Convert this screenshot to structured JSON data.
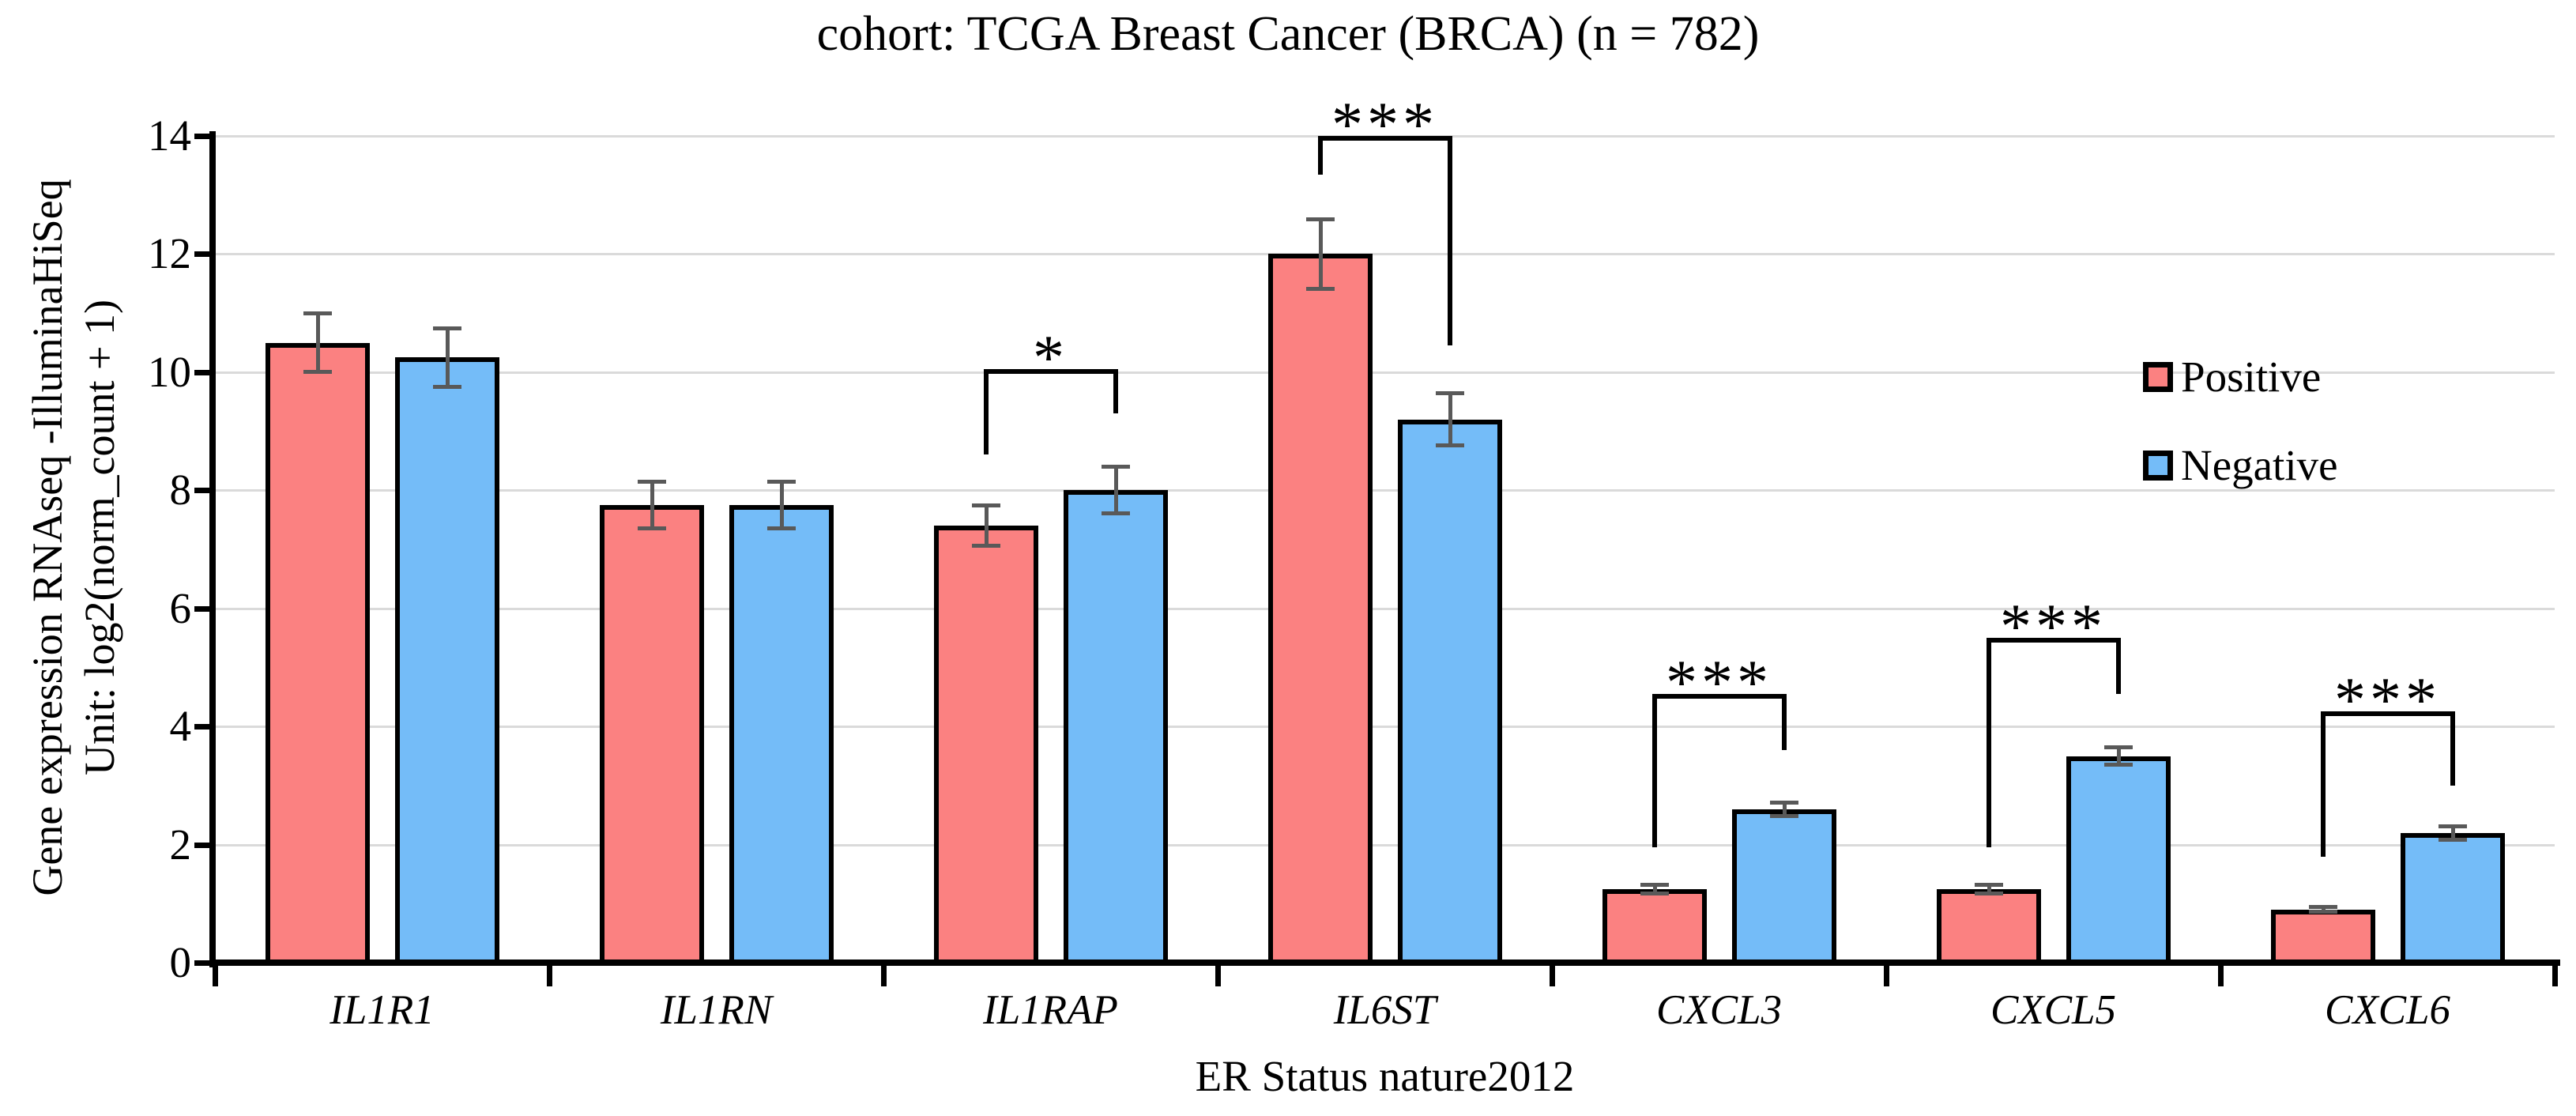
{
  "chart_data": {
    "type": "bar",
    "title": "cohort: TCGA Breast Cancer (BRCA) (n = 782)",
    "xlabel": "ER Status nature2012",
    "ylabel_line1": "Gene expression RNAseq -IlluminaHiSeq",
    "ylabel_line2": "Unit: log2(norm_count + 1)",
    "categories": [
      "IL1R1",
      "IL1RN",
      "IL1RAP",
      "IL6ST",
      "CXCL3",
      "CXCL5",
      "CXCL6"
    ],
    "series": [
      {
        "name": "Positive",
        "color": "#FB8181",
        "values": [
          10.5,
          7.75,
          7.4,
          12.0,
          1.25,
          1.25,
          0.9
        ],
        "errors": [
          0.5,
          0.4,
          0.35,
          0.6,
          0.08,
          0.08,
          0.05
        ]
      },
      {
        "name": "Negative",
        "color": "#74BCF8",
        "values": [
          10.25,
          7.75,
          8.0,
          9.2,
          2.6,
          3.5,
          2.2
        ],
        "errors": [
          0.5,
          0.4,
          0.4,
          0.45,
          0.12,
          0.15,
          0.12
        ]
      }
    ],
    "significance": [
      {
        "category": "IL1RAP",
        "label": "*",
        "bar_y": 10.05,
        "left_drop": 8.6,
        "right_drop": 9.3
      },
      {
        "category": "IL6ST",
        "label": "***",
        "bar_y": 14.0,
        "left_drop": 13.35,
        "right_drop": 10.45
      },
      {
        "category": "CXCL3",
        "label": "***",
        "bar_y": 4.55,
        "left_drop": 1.95,
        "right_drop": 3.6
      },
      {
        "category": "CXCL5",
        "label": "***",
        "bar_y": 5.5,
        "left_drop": 1.95,
        "right_drop": 4.55
      },
      {
        "category": "CXCL6",
        "label": "***",
        "bar_y": 4.25,
        "left_drop": 1.8,
        "right_drop": 3.0
      }
    ],
    "yticks": [
      0,
      2,
      4,
      6,
      8,
      10,
      12,
      14
    ],
    "ylim": [
      0,
      14
    ],
    "grid": true,
    "legend_position": "inside-right",
    "error_bar_color": "#595959",
    "gridline_color": "#dadada"
  }
}
